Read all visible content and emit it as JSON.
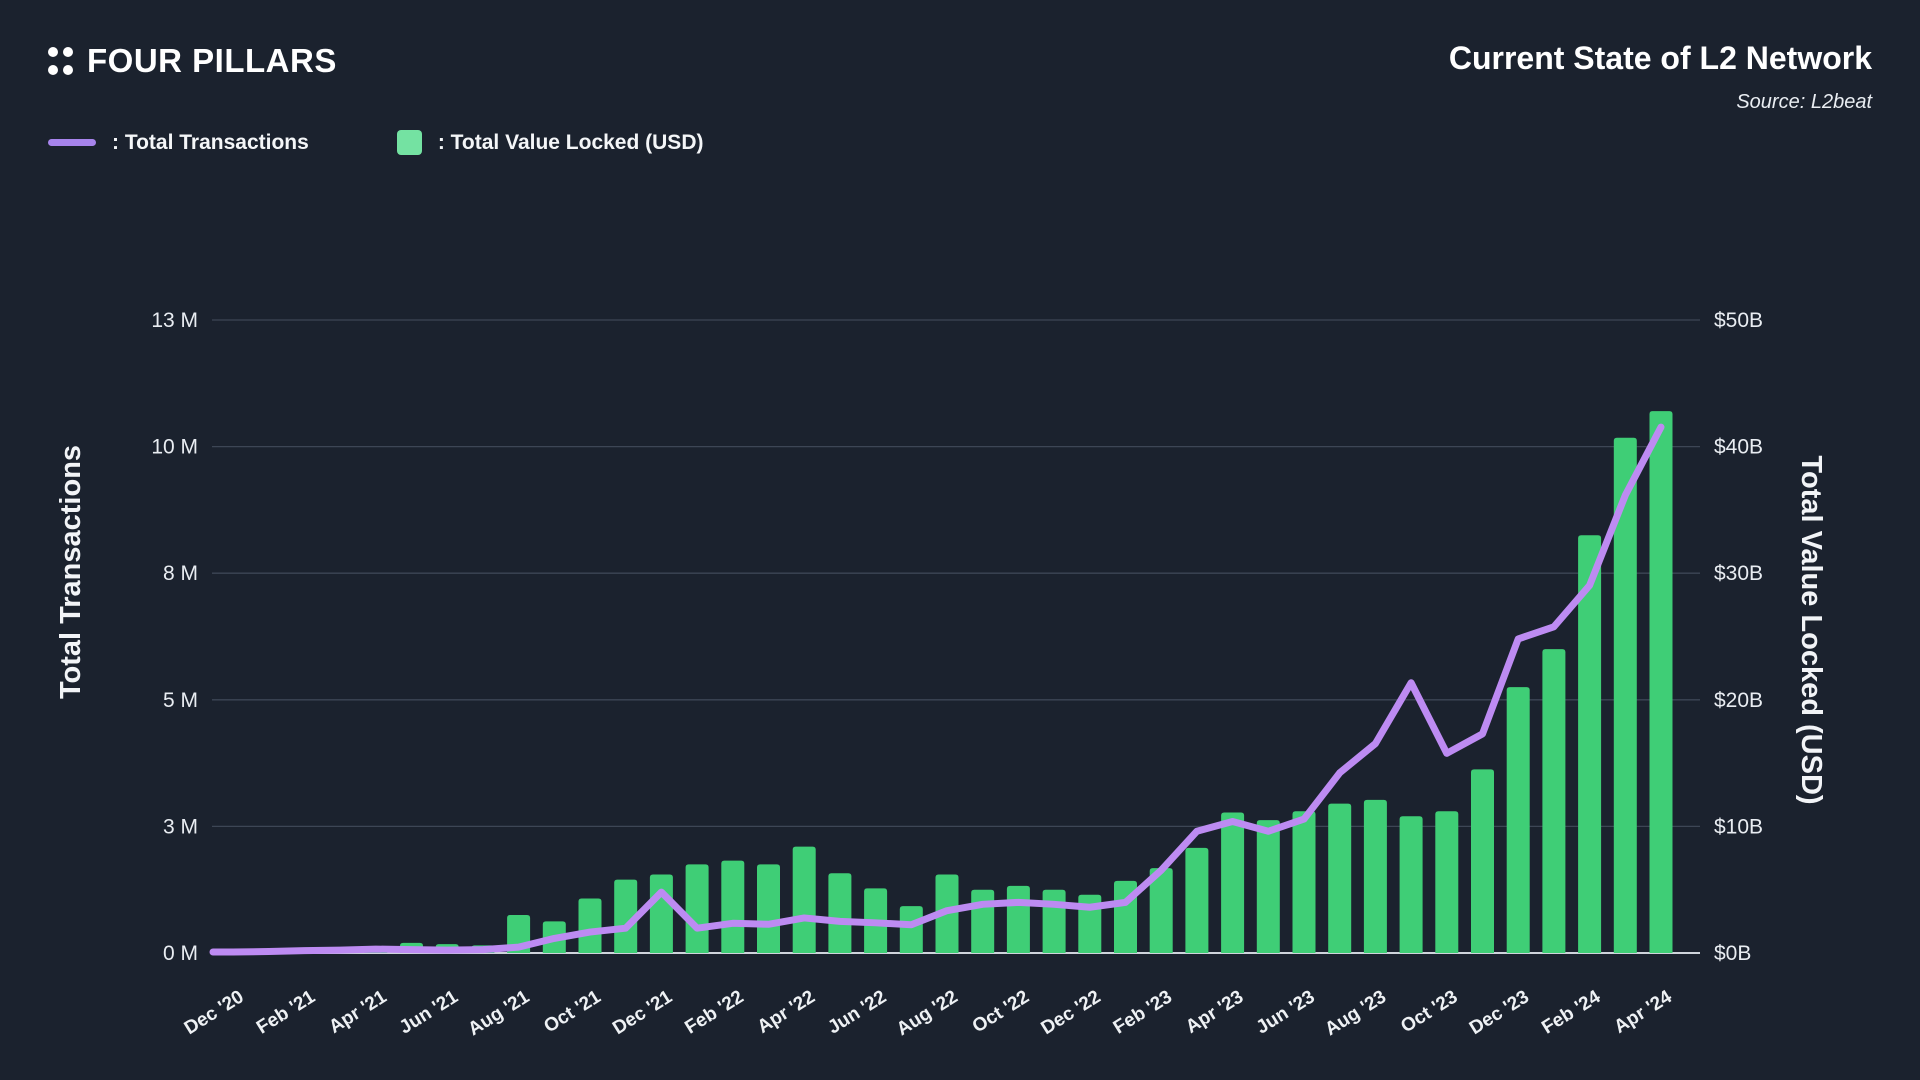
{
  "header": {
    "logo_text": "FOUR PILLARS",
    "title": "Current State of L2 Network",
    "source": "Source: L2beat"
  },
  "legend": {
    "items": [
      {
        "label": ": Total Transactions",
        "type": "line",
        "color": "#a784ec"
      },
      {
        "label": ": Total Value Locked (USD)",
        "type": "box",
        "color": "#74e2a2"
      }
    ]
  },
  "chart_data": {
    "type": "bar+line",
    "title": "Current State of L2 Network",
    "grid": true,
    "legend_position": "top-left",
    "background_color": "#1b222e",
    "gridline_color": "#3d4655",
    "baseline_color": "#cfd4dc",
    "x": [
      "Dec '20",
      "Jan '21",
      "Feb '21",
      "Mar '21",
      "Apr '21",
      "May '21",
      "Jun '21",
      "Jul '21",
      "Aug '21",
      "Sep '21",
      "Oct '21",
      "Nov '21",
      "Dec '21",
      "Jan '22",
      "Feb '22",
      "Mar '22",
      "Apr '22",
      "May '22",
      "Jun '22",
      "Jul '22",
      "Aug '22",
      "Sep '22",
      "Oct '22",
      "Nov '22",
      "Dec '22",
      "Jan '23",
      "Feb '23",
      "Mar '23",
      "Apr '23",
      "May '23",
      "Jun '23",
      "Jul '23",
      "Aug '23",
      "Sep '23",
      "Oct '23",
      "Nov '23",
      "Dec '23",
      "Jan '24",
      "Feb '24",
      "Mar '24",
      "Apr '24"
    ],
    "x_tick_labels": [
      "Dec '20",
      "Feb '21",
      "Apr '21",
      "Jun '21",
      "Aug '21",
      "Oct '21",
      "Dec '21",
      "Feb '22",
      "Apr '22",
      "Jun '22",
      "Aug '22",
      "Oct '22",
      "Dec '22",
      "Feb '23",
      "Apr '23",
      "Jun '23",
      "Aug '23",
      "Oct '23",
      "Dec '23",
      "Feb '24",
      "Apr '24"
    ],
    "left_axis": {
      "title": "Total Transactions",
      "unit": "M",
      "range": [
        0,
        13
      ],
      "tick_labels": [
        "0 M",
        "3 M",
        "5 M",
        "8 M",
        "10 M",
        "13 M"
      ]
    },
    "right_axis": {
      "title": "Total Value Locked (USD)",
      "unit": "$B",
      "range": [
        0,
        50
      ],
      "tick_labels": [
        "$0B",
        "$10B",
        "$20B",
        "$30B",
        "$40B",
        "$50B"
      ]
    },
    "series": [
      {
        "name": "Total Transactions",
        "type": "line",
        "axis": "left",
        "color": "#bd8bf2",
        "unit": "M",
        "values": [
          0.02,
          0.03,
          0.05,
          0.06,
          0.08,
          0.07,
          0.06,
          0.07,
          0.12,
          0.3,
          0.43,
          0.51,
          1.25,
          0.51,
          0.61,
          0.59,
          0.72,
          0.65,
          0.62,
          0.58,
          0.87,
          1.0,
          1.04,
          1.0,
          0.94,
          1.04,
          1.7,
          2.5,
          2.7,
          2.5,
          2.75,
          3.7,
          4.3,
          5.55,
          4.1,
          4.5,
          6.45,
          6.7,
          7.55,
          9.4,
          10.8
        ]
      },
      {
        "name": "Total Value Locked (USD)",
        "type": "bar",
        "axis": "right",
        "color": "#3fce76",
        "unit": "$B",
        "values": [
          0.15,
          0.2,
          0.3,
          0.25,
          0.45,
          0.8,
          0.7,
          0.6,
          3.0,
          2.5,
          4.3,
          5.8,
          6.2,
          7.0,
          7.3,
          7.0,
          8.4,
          6.3,
          5.1,
          3.7,
          6.2,
          5.0,
          5.3,
          5.0,
          4.6,
          5.7,
          6.7,
          8.3,
          11.1,
          10.5,
          11.2,
          11.8,
          12.1,
          10.8,
          11.2,
          14.5,
          21.0,
          24.0,
          33.0,
          40.7,
          42.8
        ]
      }
    ]
  }
}
